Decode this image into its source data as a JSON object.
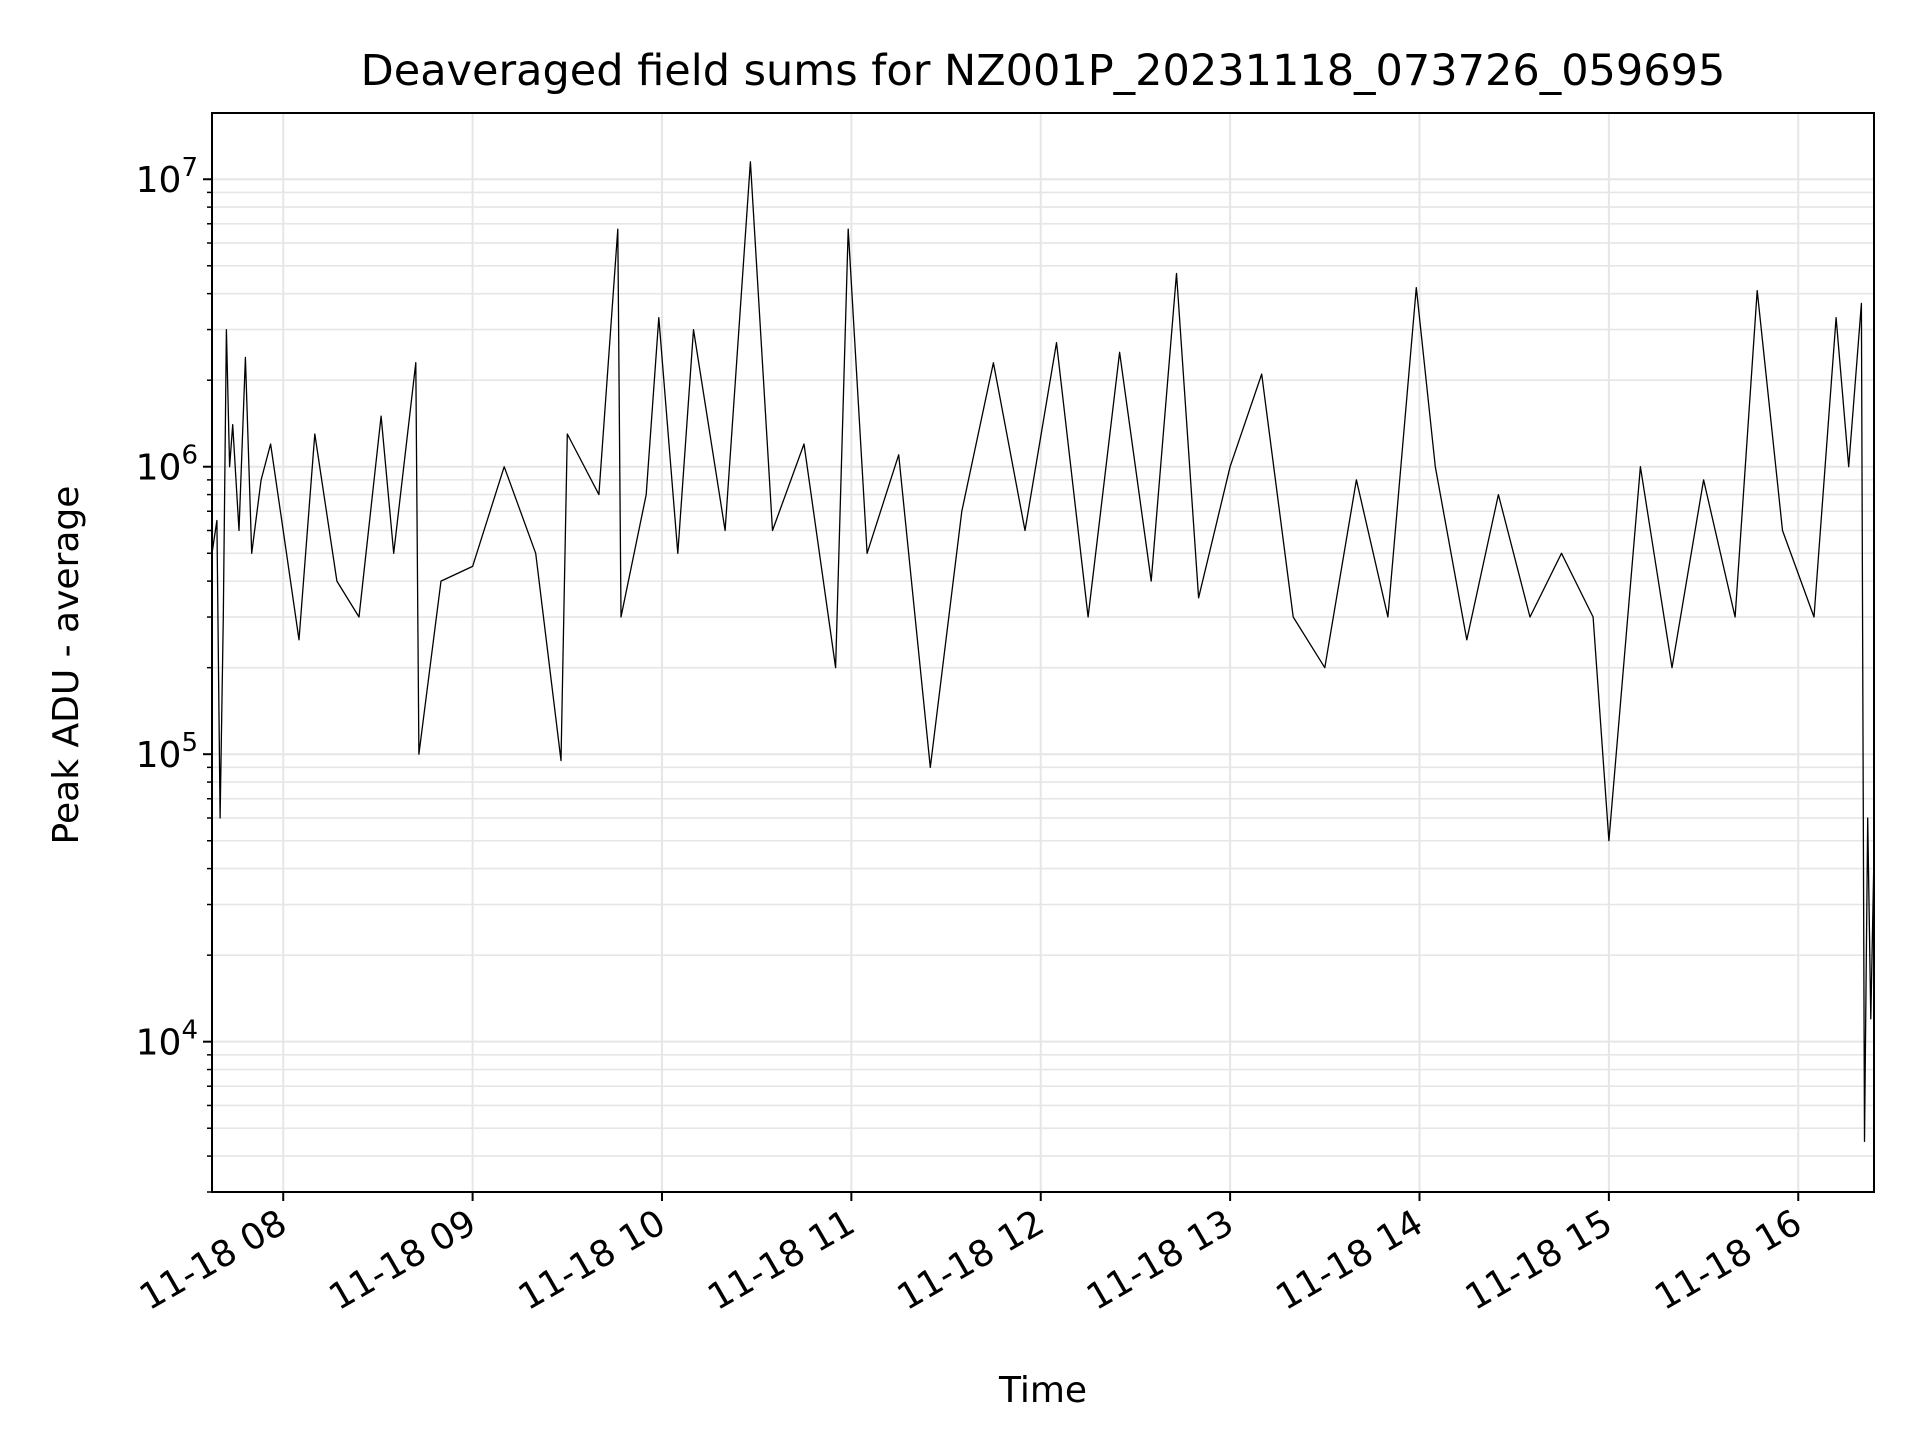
{
  "chart_data": {
    "type": "line",
    "title": "Deaveraged field sums for NZ001P_20231118_073726_059695",
    "xlabel": "Time",
    "ylabel": "Peak ADU - average",
    "yscale": "log",
    "ylim": [
      3000,
      17000000
    ],
    "xlim": [
      "2023-11-18 07:37:26",
      "2023-11-18 16:24:00"
    ],
    "x_ticks": [
      {
        "value": "2023-11-18 08:00",
        "label": "11-18 08"
      },
      {
        "value": "2023-11-18 09:00",
        "label": "11-18 09"
      },
      {
        "value": "2023-11-18 10:00",
        "label": "11-18 10"
      },
      {
        "value": "2023-11-18 11:00",
        "label": "11-18 11"
      },
      {
        "value": "2023-11-18 12:00",
        "label": "11-18 12"
      },
      {
        "value": "2023-11-18 13:00",
        "label": "11-18 13"
      },
      {
        "value": "2023-11-18 14:00",
        "label": "11-18 14"
      },
      {
        "value": "2023-11-18 15:00",
        "label": "11-18 15"
      },
      {
        "value": "2023-11-18 16:00",
        "label": "11-18 16"
      }
    ],
    "y_ticks": [
      {
        "value": 10000,
        "base": "10",
        "exp": "4"
      },
      {
        "value": 100000,
        "base": "10",
        "exp": "5"
      },
      {
        "value": 1000000,
        "base": "10",
        "exp": "6"
      },
      {
        "value": 10000000,
        "base": "10",
        "exp": "7"
      }
    ],
    "grid": true,
    "line_color": "#000000",
    "grid_color": "#e6e6e6",
    "series": [
      {
        "x": [
          "2023-11-18 07:37:26",
          "2023-11-18 07:39",
          "2023-11-18 07:40",
          "2023-11-18 07:41",
          "2023-11-18 07:42",
          "2023-11-18 07:43",
          "2023-11-18 07:44",
          "2023-11-18 07:46",
          "2023-11-18 07:48",
          "2023-11-18 07:50",
          "2023-11-18 07:53",
          "2023-11-18 07:56",
          "2023-11-18 08:00",
          "2023-11-18 08:05",
          "2023-11-18 08:10",
          "2023-11-18 08:17",
          "2023-11-18 08:24",
          "2023-11-18 08:31",
          "2023-11-18 08:35",
          "2023-11-18 08:42",
          "2023-11-18 08:43",
          "2023-11-18 08:50",
          "2023-11-18 09:00",
          "2023-11-18 09:10",
          "2023-11-18 09:20",
          "2023-11-18 09:28",
          "2023-11-18 09:30",
          "2023-11-18 09:40",
          "2023-11-18 09:46",
          "2023-11-18 09:47",
          "2023-11-18 09:55",
          "2023-11-18 09:59",
          "2023-11-18 10:05",
          "2023-11-18 10:10",
          "2023-11-18 10:20",
          "2023-11-18 10:28",
          "2023-11-18 10:35",
          "2023-11-18 10:45",
          "2023-11-18 10:55",
          "2023-11-18 10:59",
          "2023-11-18 11:05",
          "2023-11-18 11:15",
          "2023-11-18 11:25",
          "2023-11-18 11:35",
          "2023-11-18 11:45",
          "2023-11-18 11:55",
          "2023-11-18 12:05",
          "2023-11-18 12:15",
          "2023-11-18 12:25",
          "2023-11-18 12:35",
          "2023-11-18 12:43",
          "2023-11-18 12:50",
          "2023-11-18 13:00",
          "2023-11-18 13:10",
          "2023-11-18 13:20",
          "2023-11-18 13:30",
          "2023-11-18 13:40",
          "2023-11-18 13:50",
          "2023-11-18 13:59",
          "2023-11-18 14:05",
          "2023-11-18 14:15",
          "2023-11-18 14:25",
          "2023-11-18 14:35",
          "2023-11-18 14:45",
          "2023-11-18 14:55",
          "2023-11-18 15:00",
          "2023-11-18 15:10",
          "2023-11-18 15:20",
          "2023-11-18 15:30",
          "2023-11-18 15:40",
          "2023-11-18 15:47",
          "2023-11-18 15:55",
          "2023-11-18 16:05",
          "2023-11-18 16:12",
          "2023-11-18 16:16",
          "2023-11-18 16:20",
          "2023-11-18 16:21",
          "2023-11-18 16:22",
          "2023-11-18 16:23",
          "2023-11-18 16:24"
        ],
        "y": [
          500000,
          650000,
          60000,
          300000,
          3000000,
          1000000,
          1400000,
          600000,
          2400000,
          500000,
          900000,
          1200000,
          600000,
          250000,
          1300000,
          400000,
          300000,
          1500000,
          500000,
          2300000,
          100000,
          400000,
          450000,
          1000000,
          500000,
          95000,
          1300000,
          800000,
          6700000,
          300000,
          800000,
          3300000,
          500000,
          3000000,
          600000,
          11500000,
          600000,
          1200000,
          200000,
          6700000,
          500000,
          1100000,
          90000,
          700000,
          2300000,
          600000,
          2700000,
          300000,
          2500000,
          400000,
          4700000,
          350000,
          1000000,
          2100000,
          300000,
          200000,
          900000,
          300000,
          4200000,
          1000000,
          250000,
          800000,
          300000,
          500000,
          300000,
          50000,
          1000000,
          200000,
          900000,
          300000,
          4100000,
          600000,
          300000,
          3300000,
          1000000,
          3700000,
          4500,
          60000,
          12000,
          45000
        ]
      }
    ]
  }
}
